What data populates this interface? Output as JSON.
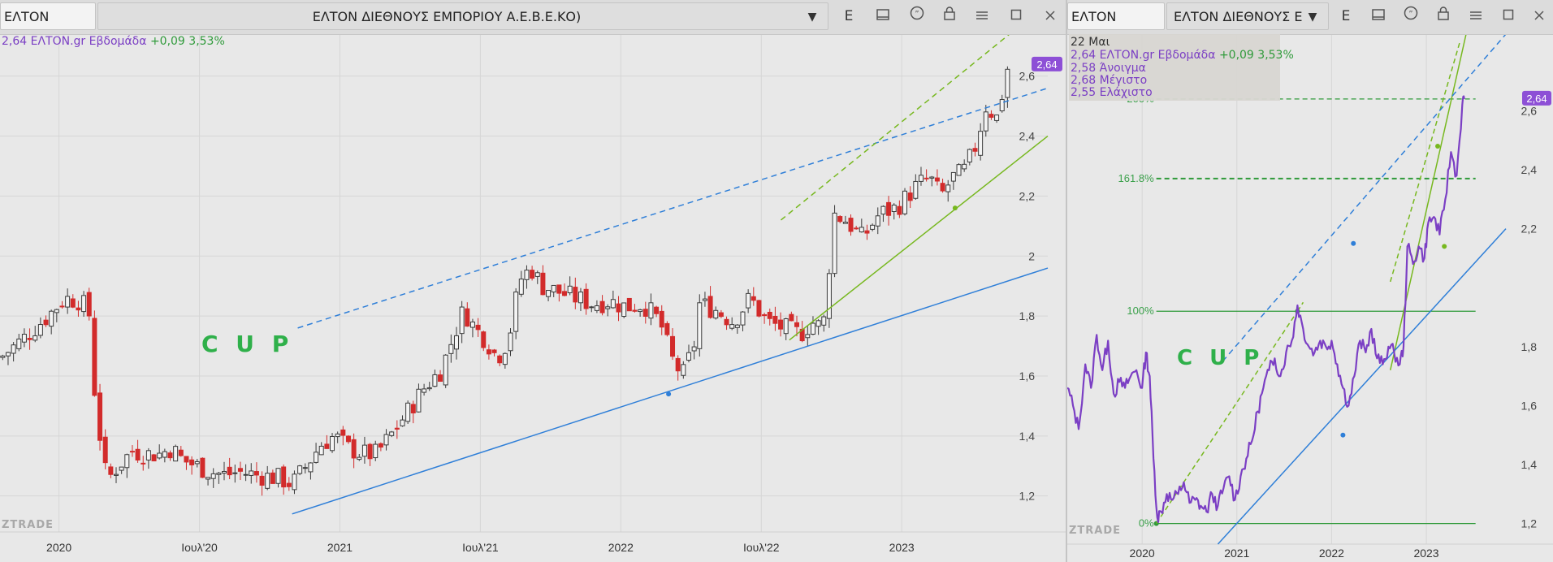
{
  "left_panel": {
    "symbol": "ΕΛΤΟΝ",
    "title": "ΕΛΤΟΝ ΔΙΕΘΝΟΥΣ ΕΜΠΟΡΙΟΥ Α.Ε.Β.Ε.ΚΟ)",
    "toolbar_icons": [
      "chevron-down-icon",
      "e-icon",
      "panel-icon",
      "quote-icon",
      "lock-icon",
      "menu-icon",
      "maximize-icon",
      "close-icon"
    ],
    "toolbar_e_label": "E",
    "info": {
      "label": "2,64 ΕΛΤΟΝ.gr Εβδομάδα",
      "change": "+0,09 3,53%"
    },
    "price_tag": "2,64",
    "cup_label": "C U P",
    "watermark": "ZTRADE"
  },
  "right_panel": {
    "symbol": "ΕΛΤΟΝ",
    "title": "ΕΛΤΟΝ ΔΙΕΘΝΟΥΣ Ε",
    "toolbar_e_label": "E",
    "legend": {
      "date": "22 Μαι",
      "line1_label": "2,64 ΕΛΤΟΝ.gr Εβδομάδα",
      "line1_change": "+0,09 3,53%",
      "open": "2,58 Άνοιγμα",
      "high": "2,68 Μέγιστο",
      "low": "2,55 Ελάχιστο"
    },
    "price_tag": "2,64",
    "cup_label": "C U P",
    "watermark": "ZTRADE"
  },
  "colors": {
    "up_candle": "#3a3a3a",
    "down_candle": "#d22b2b",
    "line_series": "#7b3fc4",
    "blue_trend": "#2f7fd8",
    "green_trend": "#77b81f",
    "fib_green": "#2f9a3a",
    "price_tag_bg": "#8d4fd6"
  },
  "chart_data": [
    {
      "type": "candlestick",
      "title": "ΕΛΤΟΝ ΔΙΕΘΝΟΥΣ ΕΜΠΟΡΙΟΥ Α.Ε.Β.Ε.ΚΟ)",
      "x_tick_labels": [
        "2020",
        "Ιουλ'20",
        "2021",
        "Ιουλ'21",
        "2022",
        "Ιουλ'22",
        "2023"
      ],
      "x_tick_years": [
        2020.0,
        2020.5,
        2021.0,
        2021.5,
        2022.0,
        2022.5,
        2023.0
      ],
      "y_tick_labels": [
        "1,2",
        "1,4",
        "1,6",
        "1,8",
        "2",
        "2,2",
        "2,4",
        "2,6"
      ],
      "y_ticks": [
        1.2,
        1.4,
        1.6,
        1.8,
        2.0,
        2.2,
        2.4,
        2.6
      ],
      "xlim": [
        2019.79,
        2023.52
      ],
      "ylim": [
        1.08,
        2.74
      ],
      "close_path": [
        [
          2019.79,
          1.66
        ],
        [
          2019.88,
          1.73
        ],
        [
          2019.96,
          1.8
        ],
        [
          2020.02,
          1.86
        ],
        [
          2020.08,
          1.85
        ],
        [
          2020.11,
          1.8
        ],
        [
          2020.13,
          1.5
        ],
        [
          2020.17,
          1.25
        ],
        [
          2020.21,
          1.3
        ],
        [
          2020.26,
          1.35
        ],
        [
          2020.31,
          1.34
        ],
        [
          2020.36,
          1.34
        ],
        [
          2020.4,
          1.36
        ],
        [
          2020.44,
          1.32
        ],
        [
          2020.49,
          1.3
        ],
        [
          2020.54,
          1.28
        ],
        [
          2020.59,
          1.27
        ],
        [
          2020.64,
          1.28
        ],
        [
          2020.7,
          1.27
        ],
        [
          2020.78,
          1.26
        ],
        [
          2020.83,
          1.24
        ],
        [
          2020.88,
          1.3
        ],
        [
          2020.93,
          1.37
        ],
        [
          2020.98,
          1.4
        ],
        [
          2021.03,
          1.36
        ],
        [
          2021.08,
          1.34
        ],
        [
          2021.13,
          1.34
        ],
        [
          2021.18,
          1.4
        ],
        [
          2021.24,
          1.48
        ],
        [
          2021.3,
          1.56
        ],
        [
          2021.36,
          1.62
        ],
        [
          2021.4,
          1.72
        ],
        [
          2021.44,
          1.82
        ],
        [
          2021.48,
          1.76
        ],
        [
          2021.52,
          1.72
        ],
        [
          2021.56,
          1.66
        ],
        [
          2021.6,
          1.72
        ],
        [
          2021.64,
          1.92
        ],
        [
          2021.68,
          1.96
        ],
        [
          2021.72,
          1.9
        ],
        [
          2021.78,
          1.88
        ],
        [
          2021.84,
          1.86
        ],
        [
          2021.9,
          1.84
        ],
        [
          2021.96,
          1.85
        ],
        [
          2022.02,
          1.83
        ],
        [
          2022.08,
          1.84
        ],
        [
          2022.14,
          1.78
        ],
        [
          2022.18,
          1.66
        ],
        [
          2022.22,
          1.6
        ],
        [
          2022.26,
          1.7
        ],
        [
          2022.28,
          1.84
        ],
        [
          2022.34,
          1.82
        ],
        [
          2022.4,
          1.78
        ],
        [
          2022.46,
          1.86
        ],
        [
          2022.52,
          1.78
        ],
        [
          2022.58,
          1.76
        ],
        [
          2022.64,
          1.74
        ],
        [
          2022.68,
          1.78
        ],
        [
          2022.72,
          1.76
        ],
        [
          2022.76,
          2.14
        ],
        [
          2022.8,
          2.12
        ],
        [
          2022.86,
          2.06
        ],
        [
          2022.92,
          2.14
        ],
        [
          2022.98,
          2.16
        ],
        [
          2023.02,
          2.2
        ],
        [
          2023.06,
          2.24
        ],
        [
          2023.1,
          2.26
        ],
        [
          2023.14,
          2.2
        ],
        [
          2023.18,
          2.26
        ],
        [
          2023.22,
          2.28
        ],
        [
          2023.26,
          2.36
        ],
        [
          2023.3,
          2.5
        ],
        [
          2023.34,
          2.46
        ],
        [
          2023.38,
          2.64
        ]
      ],
      "trend_lines": [
        {
          "style": "dashed",
          "color": "blue",
          "from": [
            2020.85,
            1.76
          ],
          "to": [
            2023.52,
            2.56
          ]
        },
        {
          "style": "solid",
          "color": "blue",
          "from": [
            2020.83,
            1.14
          ],
          "to": [
            2023.52,
            1.96
          ],
          "anchor": [
            2022.17,
            1.54
          ]
        },
        {
          "style": "dashed",
          "color": "green",
          "from": [
            2022.57,
            2.12
          ],
          "to": [
            2023.41,
            2.76
          ]
        },
        {
          "style": "solid",
          "color": "green",
          "from": [
            2022.6,
            1.72
          ],
          "to": [
            2023.52,
            2.4
          ],
          "anchor": [
            2023.19,
            2.16
          ]
        }
      ],
      "last_price": 2.64
    },
    {
      "type": "line",
      "title": "ΕΛΤΟΝ ΔΙΕΘΝΟΥΣ Ε",
      "x_tick_labels": [
        "2020",
        "2021",
        "2022",
        "2023"
      ],
      "x_tick_years": [
        2020.0,
        2021.0,
        2022.0,
        2023.0
      ],
      "y_tick_labels": [
        "1,2",
        "1,4",
        "1,6",
        "1,8",
        "2,2",
        "2,4",
        "2,6"
      ],
      "y_ticks": [
        1.2,
        1.4,
        1.6,
        1.8,
        2.2,
        2.4,
        2.6
      ],
      "xlim": [
        2019.21,
        2023.84
      ],
      "ylim": [
        1.13,
        2.86
      ],
      "series": [
        {
          "values": [
            [
              2019.21,
              1.66
            ],
            [
              2019.27,
              1.6
            ],
            [
              2019.33,
              1.52
            ],
            [
              2019.4,
              1.74
            ],
            [
              2019.46,
              1.66
            ],
            [
              2019.52,
              1.84
            ],
            [
              2019.58,
              1.72
            ],
            [
              2019.64,
              1.82
            ],
            [
              2019.7,
              1.64
            ],
            [
              2019.76,
              1.68
            ],
            [
              2019.82,
              1.66
            ],
            [
              2019.88,
              1.7
            ],
            [
              2019.94,
              1.72
            ],
            [
              2020.0,
              1.66
            ],
            [
              2020.04,
              1.78
            ],
            [
              2020.08,
              1.7
            ],
            [
              2020.12,
              1.42
            ],
            [
              2020.16,
              1.22
            ],
            [
              2020.2,
              1.24
            ],
            [
              2020.26,
              1.3
            ],
            [
              2020.32,
              1.28
            ],
            [
              2020.38,
              1.3
            ],
            [
              2020.44,
              1.34
            ],
            [
              2020.5,
              1.27
            ],
            [
              2020.56,
              1.28
            ],
            [
              2020.62,
              1.26
            ],
            [
              2020.68,
              1.24
            ],
            [
              2020.74,
              1.3
            ],
            [
              2020.8,
              1.26
            ],
            [
              2020.86,
              1.32
            ],
            [
              2020.92,
              1.36
            ],
            [
              2020.98,
              1.28
            ],
            [
              2021.04,
              1.36
            ],
            [
              2021.1,
              1.42
            ],
            [
              2021.16,
              1.48
            ],
            [
              2021.22,
              1.58
            ],
            [
              2021.28,
              1.66
            ],
            [
              2021.34,
              1.72
            ],
            [
              2021.4,
              1.76
            ],
            [
              2021.46,
              1.7
            ],
            [
              2021.52,
              1.78
            ],
            [
              2021.58,
              1.82
            ],
            [
              2021.64,
              1.94
            ],
            [
              2021.7,
              1.86
            ],
            [
              2021.76,
              1.8
            ],
            [
              2021.82,
              1.78
            ],
            [
              2021.88,
              1.82
            ],
            [
              2021.94,
              1.8
            ],
            [
              2022.0,
              1.82
            ],
            [
              2022.06,
              1.74
            ],
            [
              2022.12,
              1.66
            ],
            [
              2022.18,
              1.6
            ],
            [
              2022.24,
              1.7
            ],
            [
              2022.3,
              1.82
            ],
            [
              2022.36,
              1.78
            ],
            [
              2022.42,
              1.86
            ],
            [
              2022.48,
              1.76
            ],
            [
              2022.54,
              1.74
            ],
            [
              2022.6,
              1.8
            ],
            [
              2022.66,
              1.78
            ],
            [
              2022.72,
              1.74
            ],
            [
              2022.76,
              1.8
            ],
            [
              2022.8,
              2.14
            ],
            [
              2022.86,
              2.08
            ],
            [
              2022.92,
              2.14
            ],
            [
              2022.98,
              2.1
            ],
            [
              2023.02,
              2.22
            ],
            [
              2023.08,
              2.24
            ],
            [
              2023.14,
              2.18
            ],
            [
              2023.2,
              2.3
            ],
            [
              2023.26,
              2.46
            ],
            [
              2023.32,
              2.38
            ],
            [
              2023.38,
              2.62
            ],
            [
              2023.4,
              2.64
            ]
          ]
        }
      ],
      "fibonacci": [
        {
          "label": "0%",
          "value": 1.2
        },
        {
          "label": "100%",
          "value": 1.92
        },
        {
          "label": "161.8%",
          "value": 2.37
        },
        {
          "label": "200%",
          "value": 2.64
        }
      ],
      "last_price": 2.64
    }
  ]
}
